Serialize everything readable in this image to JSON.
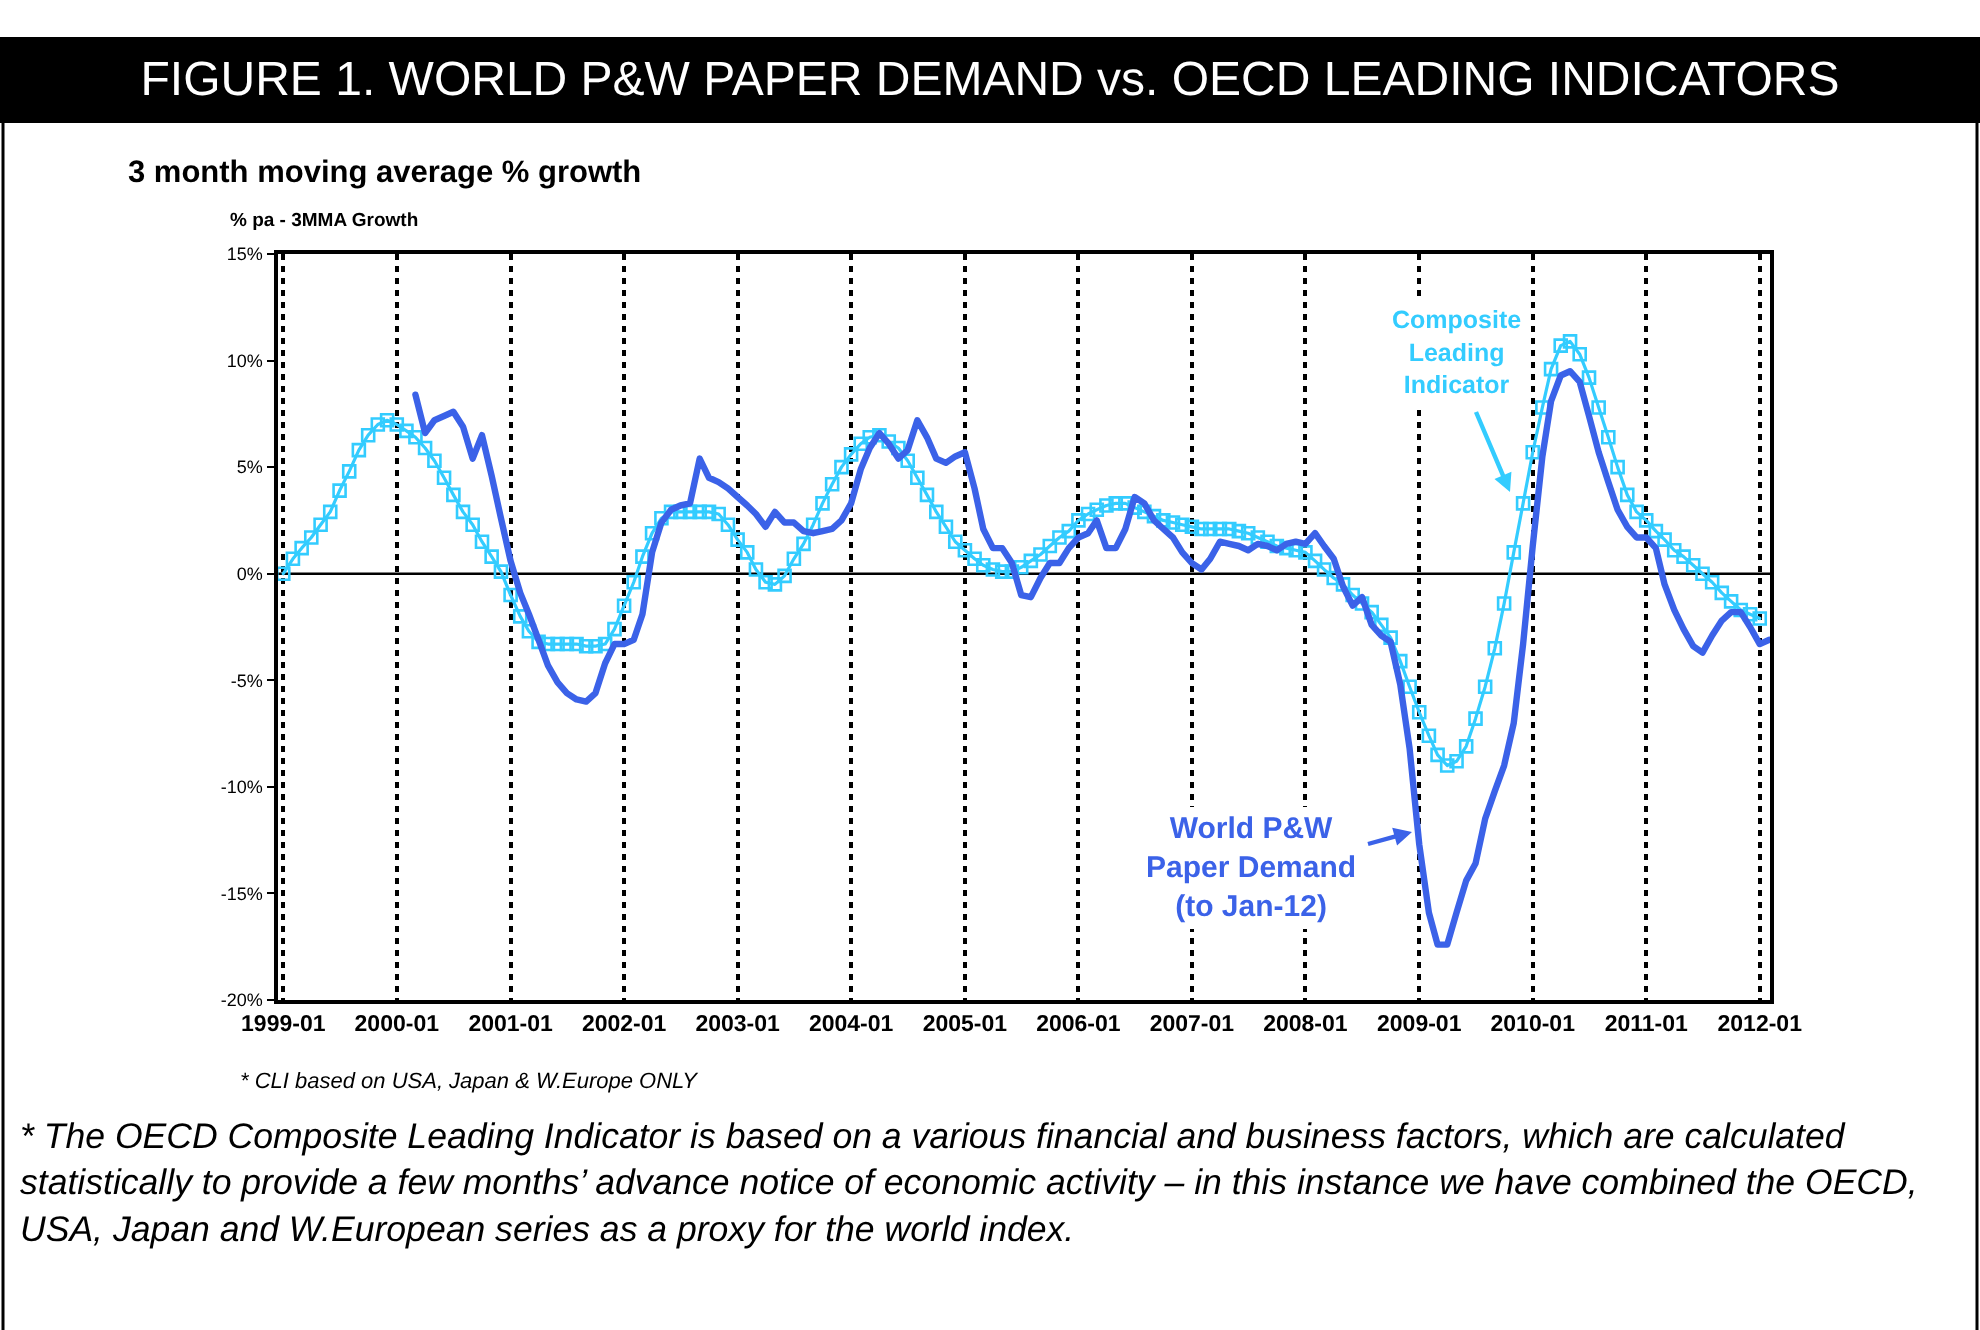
{
  "chart_data": {
    "type": "line",
    "title": "FIGURE 1. WORLD P&W PAPER DEMAND vs. OECD LEADING INDICATORS",
    "subtitle": "3 month moving average % growth",
    "ylabel": "% pa - 3MMA Growth",
    "annotations": [
      "* CLI based on USA, Japan & W.Europe ONLY",
      "* The OECD Composite Leading Indicator is based on a various financial and business factors, which are calculated\nstatistically to provide a few months’ advance notice of economic activity – in this instance we have combined the OECD,\nUSA, Japan and W.European series as a proxy for the world index."
    ],
    "x": [
      "1999-01",
      "1999-02",
      "1999-03",
      "1999-04",
      "1999-05",
      "1999-06",
      "1999-07",
      "1999-08",
      "1999-09",
      "1999-10",
      "1999-11",
      "1999-12",
      "2000-01",
      "2000-02",
      "2000-03",
      "2000-04",
      "2000-05",
      "2000-06",
      "2000-07",
      "2000-08",
      "2000-09",
      "2000-10",
      "2000-11",
      "2000-12",
      "2001-01",
      "2001-02",
      "2001-03",
      "2001-04",
      "2001-05",
      "2001-06",
      "2001-07",
      "2001-08",
      "2001-09",
      "2001-10",
      "2001-11",
      "2001-12",
      "2002-01",
      "2002-02",
      "2002-03",
      "2002-04",
      "2002-05",
      "2002-06",
      "2002-07",
      "2002-08",
      "2002-09",
      "2002-10",
      "2002-11",
      "2002-12",
      "2003-01",
      "2003-02",
      "2003-03",
      "2003-04",
      "2003-05",
      "2003-06",
      "2003-07",
      "2003-08",
      "2003-09",
      "2003-10",
      "2003-11",
      "2003-12",
      "2004-01",
      "2004-02",
      "2004-03",
      "2004-04",
      "2004-05",
      "2004-06",
      "2004-07",
      "2004-08",
      "2004-09",
      "2004-10",
      "2004-11",
      "2004-12",
      "2005-01",
      "2005-02",
      "2005-03",
      "2005-04",
      "2005-05",
      "2005-06",
      "2005-07",
      "2005-08",
      "2005-09",
      "2005-10",
      "2005-11",
      "2005-12",
      "2006-01",
      "2006-02",
      "2006-03",
      "2006-04",
      "2006-05",
      "2006-06",
      "2006-07",
      "2006-08",
      "2006-09",
      "2006-10",
      "2006-11",
      "2006-12",
      "2007-01",
      "2007-02",
      "2007-03",
      "2007-04",
      "2007-05",
      "2007-06",
      "2007-07",
      "2007-08",
      "2007-09",
      "2007-10",
      "2007-11",
      "2007-12",
      "2008-01",
      "2008-02",
      "2008-03",
      "2008-04",
      "2008-05",
      "2008-06",
      "2008-07",
      "2008-08",
      "2008-09",
      "2008-10",
      "2008-11",
      "2008-12",
      "2009-01",
      "2009-02",
      "2009-03",
      "2009-04",
      "2009-05",
      "2009-06",
      "2009-07",
      "2009-08",
      "2009-09",
      "2009-10",
      "2009-11",
      "2009-12",
      "2010-01",
      "2010-02",
      "2010-03",
      "2010-04",
      "2010-05",
      "2010-06",
      "2010-07",
      "2010-08",
      "2010-09",
      "2010-10",
      "2010-11",
      "2010-12",
      "2011-01",
      "2011-02",
      "2011-03",
      "2011-04",
      "2011-05",
      "2011-06",
      "2011-07",
      "2011-08",
      "2011-09",
      "2011-10",
      "2011-11",
      "2011-12",
      "2012-01",
      "2012-02"
    ],
    "series": [
      {
        "name": "Composite\nLeading\nIndicator",
        "color": "#33ccff",
        "marker": "square",
        "values": [
          0.0,
          0.7,
          1.2,
          1.7,
          2.3,
          2.9,
          3.9,
          4.8,
          5.8,
          6.5,
          7.0,
          7.2,
          7.0,
          6.7,
          6.4,
          5.9,
          5.3,
          4.5,
          3.7,
          2.9,
          2.3,
          1.5,
          0.8,
          0.1,
          -1.0,
          -2.0,
          -2.7,
          -3.2,
          -3.3,
          -3.3,
          -3.3,
          -3.3,
          -3.4,
          -3.4,
          -3.3,
          -2.6,
          -1.5,
          -0.4,
          0.8,
          1.9,
          2.6,
          2.9,
          2.9,
          2.9,
          2.9,
          2.9,
          2.8,
          2.3,
          1.6,
          1.0,
          0.2,
          -0.4,
          -0.5,
          -0.1,
          0.7,
          1.4,
          2.3,
          3.3,
          4.2,
          5.0,
          5.6,
          6.1,
          6.4,
          6.5,
          6.2,
          5.9,
          5.3,
          4.5,
          3.7,
          2.9,
          2.2,
          1.5,
          1.1,
          0.7,
          0.4,
          0.2,
          0.1,
          0.1,
          0.3,
          0.6,
          0.9,
          1.3,
          1.7,
          2.0,
          2.5,
          2.8,
          3.0,
          3.2,
          3.3,
          3.3,
          3.1,
          2.9,
          2.7,
          2.5,
          2.4,
          2.3,
          2.2,
          2.1,
          2.1,
          2.1,
          2.1,
          2.0,
          1.9,
          1.7,
          1.5,
          1.3,
          1.2,
          1.1,
          1.0,
          0.6,
          0.2,
          -0.2,
          -0.5,
          -1.0,
          -1.4,
          -1.8,
          -2.4,
          -3.0,
          -4.1,
          -5.3,
          -6.5,
          -7.6,
          -8.5,
          -9.0,
          -8.8,
          -8.1,
          -6.8,
          -5.3,
          -3.5,
          -1.4,
          1.0,
          3.3,
          5.7,
          7.8,
          9.6,
          10.7,
          10.9,
          10.3,
          9.2,
          7.8,
          6.4,
          5.0,
          3.7,
          2.9,
          2.5,
          2.0,
          1.6,
          1.1,
          0.8,
          0.4,
          0.0,
          -0.4,
          -0.9,
          -1.3,
          -1.7,
          -1.9,
          -2.1,
          null
        ]
      },
      {
        "name": "World P&W\nPaper Demand\n(to Jan-12)",
        "color": "#3b62e8",
        "values": [
          null,
          null,
          null,
          null,
          null,
          null,
          null,
          null,
          null,
          null,
          null,
          null,
          null,
          null,
          8.4,
          6.6,
          7.2,
          7.4,
          7.6,
          6.9,
          5.4,
          6.5,
          4.6,
          2.6,
          0.6,
          -0.9,
          -1.9,
          -3.1,
          -4.3,
          -5.1,
          -5.6,
          -5.9,
          -6.0,
          -5.6,
          -4.2,
          -3.3,
          -3.3,
          -3.1,
          -1.9,
          1.0,
          2.4,
          3.0,
          3.2,
          3.3,
          5.4,
          4.5,
          4.3,
          4.0,
          3.6,
          3.2,
          2.8,
          2.2,
          2.9,
          2.4,
          2.4,
          2.0,
          1.9,
          2.0,
          2.1,
          2.5,
          3.3,
          4.9,
          5.9,
          6.6,
          6.1,
          5.4,
          5.8,
          7.2,
          6.4,
          5.4,
          5.2,
          5.5,
          5.7,
          4.0,
          2.1,
          1.2,
          1.2,
          0.5,
          -1.0,
          -1.1,
          -0.2,
          0.5,
          0.5,
          1.2,
          1.7,
          1.9,
          2.5,
          1.2,
          1.2,
          2.1,
          3.6,
          3.3,
          2.5,
          2.1,
          1.7,
          1.0,
          0.5,
          0.2,
          0.7,
          1.5,
          1.4,
          1.3,
          1.1,
          1.4,
          1.3,
          1.1,
          1.4,
          1.5,
          1.4,
          1.9,
          1.3,
          0.7,
          -0.6,
          -1.5,
          -1.1,
          -2.4,
          -2.9,
          -3.2,
          -5.2,
          -8.2,
          -12.7,
          -15.9,
          -17.4,
          -17.4,
          -15.9,
          -14.4,
          -13.6,
          -11.5,
          -10.2,
          -9.0,
          -7.0,
          -3.3,
          1.3,
          5.5,
          8.1,
          9.3,
          9.5,
          9.0,
          7.4,
          5.7,
          4.3,
          3.0,
          2.2,
          1.7,
          1.7,
          1.2,
          -0.5,
          -1.7,
          -2.6,
          -3.4,
          -3.7,
          -2.9,
          -2.2,
          -1.8,
          -1.8,
          -2.5,
          -3.3,
          -3.1
        ]
      }
    ],
    "xlim": [
      "1998-12-15",
      "2012-02-03"
    ],
    "xticks": [
      "1999-01",
      "2000-01",
      "2001-01",
      "2002-01",
      "2003-01",
      "2004-01",
      "2005-01",
      "2006-01",
      "2007-01",
      "2008-01",
      "2009-01",
      "2010-01",
      "2011-01",
      "2012-01"
    ],
    "ylim": [
      -20,
      15
    ],
    "yticks": [
      {
        "value": 15,
        "label": "15%"
      },
      {
        "value": 10,
        "label": "10%"
      },
      {
        "value": 5,
        "label": "5%"
      },
      {
        "value": 0,
        "label": "0%"
      },
      {
        "value": -5,
        "label": "-5%"
      },
      {
        "value": -10,
        "label": "-10%"
      },
      {
        "value": -15,
        "label": "-15%"
      },
      {
        "value": -20,
        "label": "-20%"
      }
    ],
    "grid": "x",
    "ref_lines": [
      {
        "axis": "y",
        "value": 0,
        "color": "#000000"
      }
    ]
  }
}
